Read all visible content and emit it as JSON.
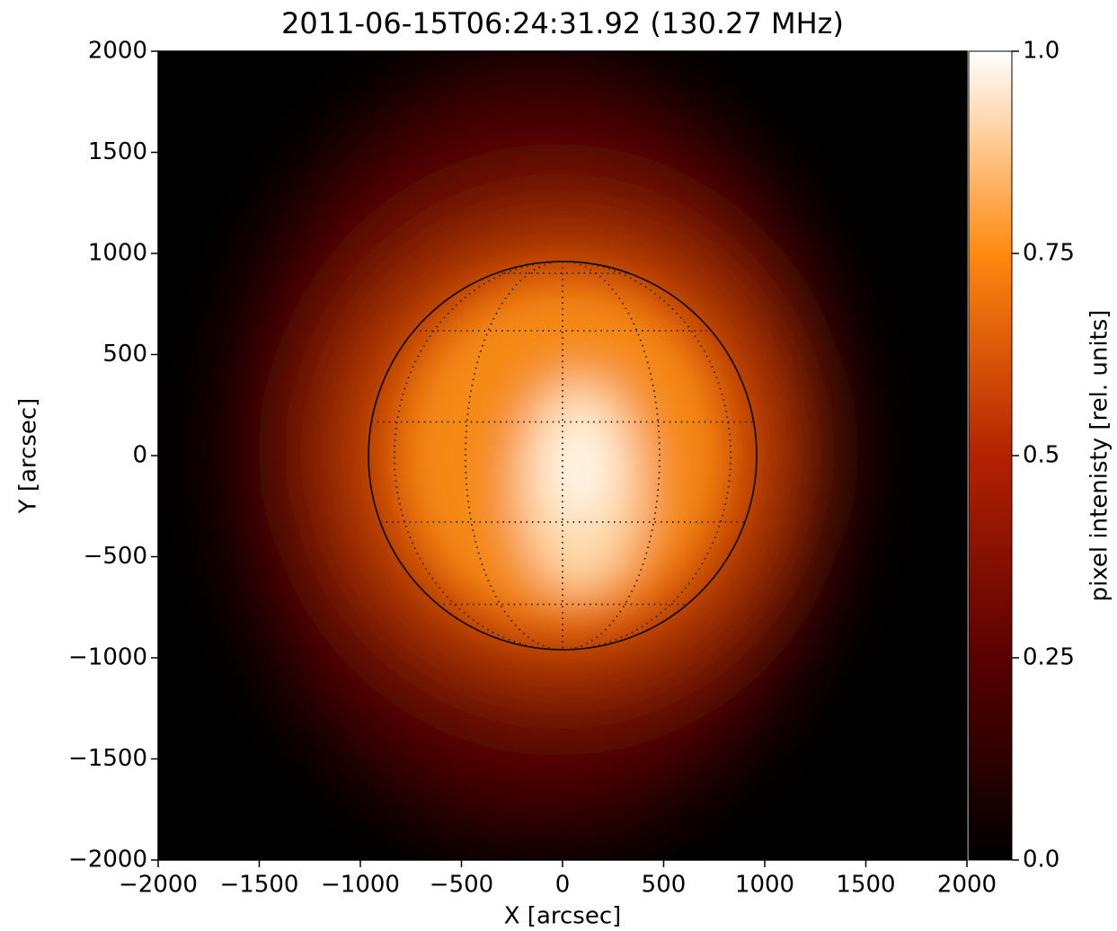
{
  "chart_data": {
    "type": "image",
    "title": "2011-06-15T06:24:31.92  (130.27 MHz)",
    "xlabel": "X [arcsec]",
    "ylabel": "Y [arcsec]",
    "xlim": [
      -2000,
      2000
    ],
    "ylim": [
      -2000,
      2000
    ],
    "xticks": [
      {
        "value": -2000,
        "label": "−2000"
      },
      {
        "value": -1500,
        "label": "−1500"
      },
      {
        "value": -1000,
        "label": "−1000"
      },
      {
        "value": -500,
        "label": "−500"
      },
      0,
      500,
      1000,
      1500,
      2000
    ],
    "yticks": [
      {
        "value": -2000,
        "label": "−2000"
      },
      {
        "value": -1500,
        "label": "−1500"
      },
      {
        "value": -1000,
        "label": "−1000"
      },
      {
        "value": -500,
        "label": "−500"
      },
      0,
      500,
      1000,
      1500,
      2000
    ],
    "disk_radius": 960,
    "colorbar": {
      "label": "pixel intenisty [rel. units]",
      "clim": [
        0,
        1
      ],
      "ticks": [
        {
          "value": 0,
          "label": "0.0"
        },
        0.25,
        0.5,
        0.75,
        {
          "value": 1,
          "label": "1.0"
        }
      ],
      "colors": [
        "#000000",
        "#5a0000",
        "#b32200",
        "#ff8a10",
        "#ffffff"
      ]
    }
  }
}
